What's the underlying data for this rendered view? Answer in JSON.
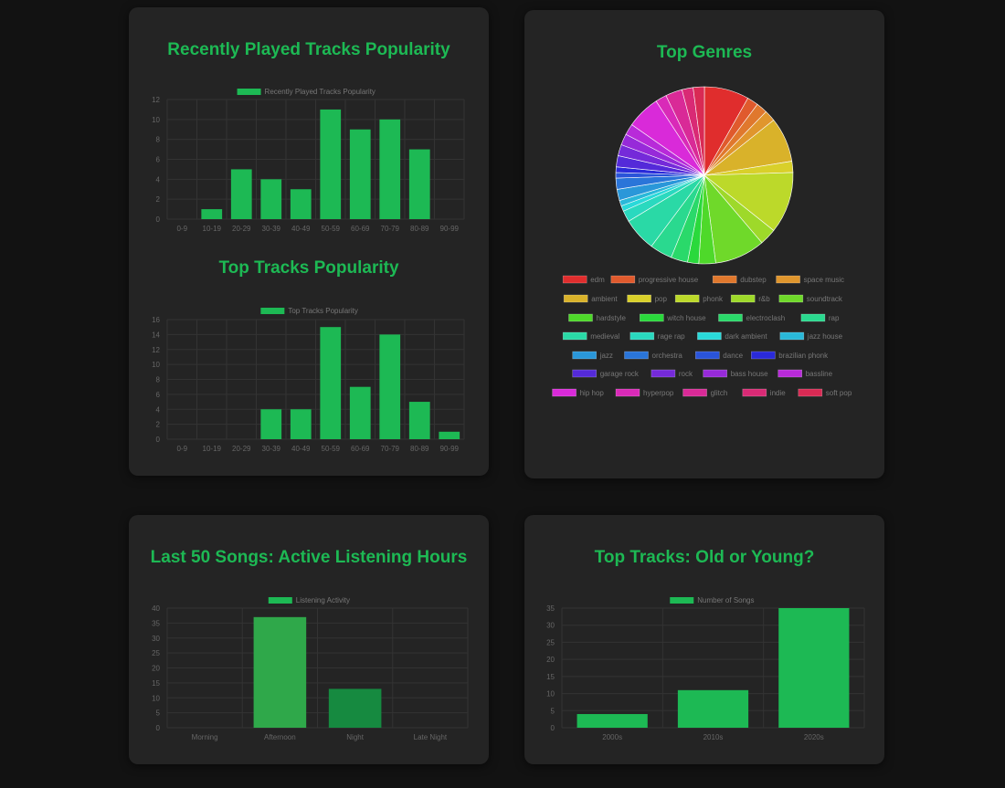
{
  "colors": {
    "accent": "#1db954",
    "axis_text": "#666666",
    "legend_text": "#777777",
    "grid": "#333333"
  },
  "cards": {
    "popularity": {
      "recent_title": "Recently Played Tracks Popularity",
      "top_title": "Top Tracks Popularity"
    },
    "genres": {
      "title": "Top Genres"
    },
    "hours": {
      "title": "Last 50 Songs: Active Listening Hours"
    },
    "age": {
      "title": "Top Tracks: Old or Young?"
    }
  },
  "chart_data": [
    {
      "id": "recent",
      "type": "bar",
      "legend": "Recently Played Tracks Popularity",
      "legend_position": "top",
      "categories": [
        "0-9",
        "10-19",
        "20-29",
        "30-39",
        "40-49",
        "50-59",
        "60-69",
        "70-79",
        "80-89",
        "90-99"
      ],
      "values": [
        0,
        1,
        5,
        4,
        3,
        11,
        9,
        10,
        7,
        0
      ],
      "ylim": [
        0,
        12
      ],
      "yticks": [
        0,
        2,
        4,
        6,
        8,
        10,
        12
      ],
      "colors": [
        "#1db954"
      ],
      "grid": true
    },
    {
      "id": "top",
      "type": "bar",
      "legend": "Top Tracks Popularity",
      "legend_position": "top",
      "categories": [
        "0-9",
        "10-19",
        "20-29",
        "30-39",
        "40-49",
        "50-59",
        "60-69",
        "70-79",
        "80-89",
        "90-99"
      ],
      "values": [
        0,
        0,
        0,
        4,
        4,
        15,
        7,
        14,
        5,
        1
      ],
      "ylim": [
        0,
        16
      ],
      "yticks": [
        0,
        2,
        4,
        6,
        8,
        10,
        12,
        14,
        16
      ],
      "colors": [
        "#1db954"
      ],
      "grid": true
    },
    {
      "id": "genres",
      "type": "pie",
      "legend_position": "bottom",
      "labels": [
        "edm",
        "progressive house",
        "dubstep",
        "space music",
        "ambient",
        "pop",
        "phonk",
        "r&b",
        "soundtrack",
        "hardstyle",
        "witch house",
        "electroclash",
        "rap",
        "medieval",
        "rage rap",
        "dark ambient",
        "jazz house",
        "jazz",
        "orchestra",
        "dance",
        "brazilian phonk",
        "garage rock",
        "rock",
        "bass house",
        "bassline",
        "hip hop",
        "hyperpop",
        "glitch",
        "indie",
        "soft pop"
      ],
      "values": [
        8,
        2,
        2,
        2,
        8,
        2,
        11,
        3,
        9,
        3,
        2,
        3,
        4,
        6,
        2,
        1,
        1,
        2,
        2,
        1,
        1,
        2,
        2,
        2,
        2,
        6,
        2,
        3,
        2,
        2
      ],
      "colors": [
        "#e02d2d",
        "#e05a2d",
        "#e0782d",
        "#e0962d",
        "#d9b22a",
        "#d9d02a",
        "#bcd92a",
        "#9ed92a",
        "#6fd92a",
        "#4ed92a",
        "#2ad93c",
        "#2ad96a",
        "#2ad98f",
        "#2ad9a6",
        "#2ad9bf",
        "#2ad9d9",
        "#2ab8d9",
        "#2a97d9",
        "#2a75d9",
        "#2a54d9",
        "#2a2ad9",
        "#542ad9",
        "#752ad9",
        "#972ad9",
        "#b82ad9",
        "#d92ad9",
        "#d92ab8",
        "#d92a97",
        "#d92a75",
        "#d92a54"
      ]
    },
    {
      "id": "hours",
      "type": "bar",
      "legend": "Listening Activity",
      "legend_position": "top",
      "categories": [
        "Morning",
        "Afternoon",
        "Night",
        "Late Night"
      ],
      "values": [
        0,
        37,
        13,
        0
      ],
      "ylim": [
        0,
        40
      ],
      "yticks": [
        0,
        5,
        10,
        15,
        20,
        25,
        30,
        35,
        40
      ],
      "colors": [
        "#1db954",
        "#2fa84a",
        "#168a40",
        "#1db954"
      ],
      "grid": true
    },
    {
      "id": "age",
      "type": "bar",
      "legend": "Number of Songs",
      "legend_position": "top",
      "categories": [
        "2000s",
        "2010s",
        "2020s"
      ],
      "values": [
        4,
        11,
        35
      ],
      "ylim": [
        0,
        35
      ],
      "yticks": [
        0,
        5,
        10,
        15,
        20,
        25,
        30,
        35
      ],
      "colors": [
        "#1db954"
      ],
      "grid": true
    }
  ]
}
